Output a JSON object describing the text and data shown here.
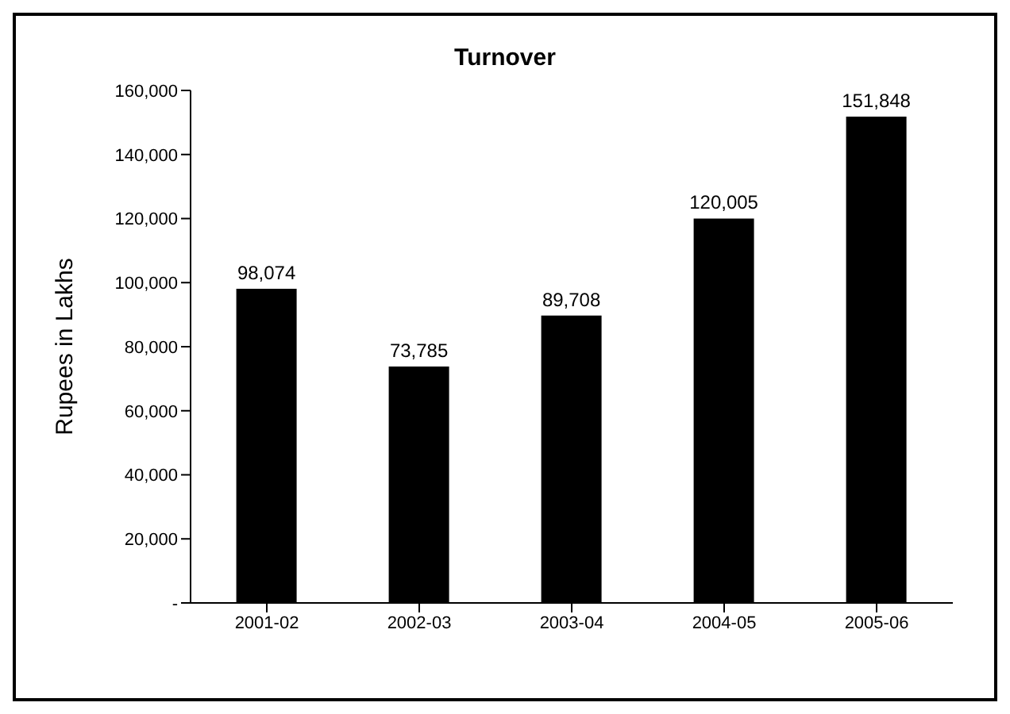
{
  "chart_data": {
    "type": "bar",
    "title": "Turnover",
    "ylabel": "Rupees in Lakhs",
    "categories": [
      "2001-02",
      "2002-03",
      "2003-04",
      "2004-05",
      "2005-06"
    ],
    "values": [
      98074,
      73785,
      89708,
      120005,
      151848
    ],
    "value_labels": [
      "98,074",
      "73,785",
      "89,708",
      "120,005",
      "151,848"
    ],
    "color": "#000000",
    "ylim": [
      0,
      160000
    ],
    "yticks": [
      {
        "value": 0,
        "label": "-"
      },
      {
        "value": 20000,
        "label": "20,000"
      },
      {
        "value": 40000,
        "label": "40,000"
      },
      {
        "value": 60000,
        "label": "60,000"
      },
      {
        "value": 80000,
        "label": "80,000"
      },
      {
        "value": 100000,
        "label": "100,000"
      },
      {
        "value": 120000,
        "label": "120,000"
      },
      {
        "value": 140000,
        "label": "140,000"
      },
      {
        "value": 160000,
        "label": "160,000"
      }
    ],
    "grid": false,
    "legend": false
  }
}
